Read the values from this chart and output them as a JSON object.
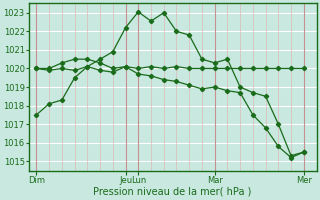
{
  "xlabel": "Pression niveau de la mer( hPa )",
  "bg_color": "#c8e8e0",
  "line_color": "#1a6b1a",
  "ylim": [
    1014.5,
    1023.5
  ],
  "yticks": [
    1015,
    1016,
    1017,
    1018,
    1019,
    1020,
    1021,
    1022,
    1023
  ],
  "xlim": [
    -0.3,
    11.0
  ],
  "x_day_positions": [
    0,
    3.5,
    4.0,
    7.0,
    10.5
  ],
  "x_day_labels": [
    "Dim",
    "Jeu",
    "Lun",
    "Mar",
    "Mer"
  ],
  "line1_x": [
    0,
    0.5,
    1.0,
    1.5,
    2.0,
    2.5,
    3.0,
    3.5,
    4.0,
    4.5,
    5.0,
    5.5,
    6.0,
    6.5,
    7.0,
    7.5,
    8.0,
    8.5,
    9.0,
    9.5,
    10.0,
    10.5
  ],
  "line1_y": [
    1017.5,
    1018.1,
    1018.3,
    1019.5,
    1020.1,
    1020.5,
    1020.9,
    1022.2,
    1023.05,
    1022.55,
    1023.0,
    1022.0,
    1021.8,
    1020.5,
    1020.3,
    1020.5,
    1019.0,
    1018.7,
    1018.5,
    1017.0,
    1015.3,
    1015.5
  ],
  "line2_x": [
    0,
    0.5,
    1.0,
    1.5,
    2.0,
    2.5,
    3.0,
    3.5,
    4.0,
    4.5,
    5.0,
    5.5,
    6.0,
    6.5,
    7.0,
    7.5,
    8.0,
    8.5,
    9.0,
    9.5,
    10.0,
    10.5
  ],
  "line2_y": [
    1020.0,
    1020.0,
    1020.3,
    1020.5,
    1020.5,
    1020.3,
    1020.0,
    1020.1,
    1020.0,
    1020.1,
    1020.0,
    1020.1,
    1020.0,
    1020.0,
    1020.0,
    1020.0,
    1020.0,
    1020.0,
    1020.0,
    1020.0,
    1020.0,
    1020.0
  ],
  "line3_x": [
    0,
    0.5,
    1.0,
    1.5,
    2.0,
    2.5,
    3.0,
    3.5,
    4.0,
    4.5,
    5.0,
    5.5,
    6.0,
    6.5,
    7.0,
    7.5,
    8.0,
    8.5,
    9.0,
    9.5,
    10.0,
    10.5
  ],
  "line3_y": [
    1020.0,
    1019.9,
    1020.0,
    1019.9,
    1020.1,
    1019.9,
    1019.8,
    1020.1,
    1019.7,
    1019.6,
    1019.4,
    1019.3,
    1019.1,
    1018.9,
    1019.0,
    1018.8,
    1018.7,
    1017.5,
    1016.8,
    1015.8,
    1015.2,
    1015.5
  ],
  "major_vlines_x": [
    0,
    3.5,
    4.0,
    7.0,
    10.5
  ],
  "minor_vlines_x": [
    0.5,
    1.0,
    1.5,
    2.0,
    2.5,
    3.0,
    4.5,
    5.0,
    5.5,
    6.0,
    6.5,
    7.5,
    8.0,
    8.5,
    9.0,
    9.5,
    10.0
  ]
}
